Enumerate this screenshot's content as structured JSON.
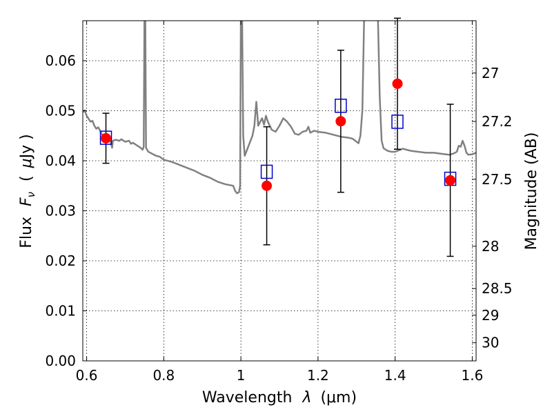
{
  "chart_data": {
    "type": "scatter",
    "title": "",
    "xlabel": "Wavelength",
    "xlabel_symbol": "λ",
    "xlabel_unit": "(μm)",
    "ylabel_left": "Flux",
    "ylabel_symbol": "F",
    "ylabel_symbol_sub": "ν",
    "ylabel_unit_open": "(",
    "ylabel_unit_mu": "μ",
    "ylabel_unit_rest": "Jy )",
    "ylabel_right": "Magnitude (AB)",
    "xlim": [
      0.59,
      1.61
    ],
    "ylim": [
      0.0,
      0.068
    ],
    "grid": true,
    "x_ticks": [
      {
        "value": 0.6,
        "label": "0.6"
      },
      {
        "value": 0.8,
        "label": "0.8"
      },
      {
        "value": 1.0,
        "label": "1"
      },
      {
        "value": 1.2,
        "label": "1.2"
      },
      {
        "value": 1.4,
        "label": "1.4"
      },
      {
        "value": 1.6,
        "label": "1.6"
      }
    ],
    "y_ticks": [
      {
        "value": 0.0,
        "label": "0.00"
      },
      {
        "value": 0.01,
        "label": "0.01"
      },
      {
        "value": 0.02,
        "label": "0.02"
      },
      {
        "value": 0.03,
        "label": "0.03"
      },
      {
        "value": 0.04,
        "label": "0.04"
      },
      {
        "value": 0.05,
        "label": "0.05"
      },
      {
        "value": 0.06,
        "label": "0.06"
      }
    ],
    "right_ticks": [
      {
        "mag": 27.0,
        "label": "27"
      },
      {
        "mag": 27.2,
        "label": "27.2"
      },
      {
        "mag": 27.5,
        "label": "27.5"
      },
      {
        "mag": 28.0,
        "label": "28"
      },
      {
        "mag": 28.5,
        "label": "28.5"
      },
      {
        "mag": 29.0,
        "label": "29"
      },
      {
        "mag": 30.0,
        "label": "30"
      }
    ],
    "series": [
      {
        "kind": "line",
        "color": "#808080",
        "points": [
          [
            0.59,
            0.0497
          ],
          [
            0.595,
            0.0501
          ],
          [
            0.6,
            0.049
          ],
          [
            0.605,
            0.0484
          ],
          [
            0.61,
            0.0478
          ],
          [
            0.615,
            0.048
          ],
          [
            0.62,
            0.047
          ],
          [
            0.625,
            0.0464
          ],
          [
            0.63,
            0.0467
          ],
          [
            0.635,
            0.046
          ],
          [
            0.64,
            0.0452
          ],
          [
            0.645,
            0.0449
          ],
          [
            0.648,
            0.0438
          ],
          [
            0.652,
            0.0438
          ],
          [
            0.656,
            0.0448
          ],
          [
            0.662,
            0.0438
          ],
          [
            0.666,
            0.0426
          ],
          [
            0.668,
            0.044
          ],
          [
            0.675,
            0.0442
          ],
          [
            0.685,
            0.044
          ],
          [
            0.69,
            0.0443
          ],
          [
            0.7,
            0.0438
          ],
          [
            0.71,
            0.044
          ],
          [
            0.715,
            0.0434
          ],
          [
            0.72,
            0.0436
          ],
          [
            0.73,
            0.0431
          ],
          [
            0.74,
            0.0426
          ],
          [
            0.745,
            0.0422
          ],
          [
            0.748,
            0.0428
          ],
          [
            0.75,
            0.07
          ],
          [
            0.752,
            0.07
          ],
          [
            0.754,
            0.0426
          ],
          [
            0.76,
            0.0418
          ],
          [
            0.77,
            0.0414
          ],
          [
            0.78,
            0.041
          ],
          [
            0.79,
            0.0408
          ],
          [
            0.8,
            0.0402
          ],
          [
            0.82,
            0.0398
          ],
          [
            0.84,
            0.0392
          ],
          [
            0.86,
            0.0386
          ],
          [
            0.88,
            0.038
          ],
          [
            0.9,
            0.0372
          ],
          [
            0.92,
            0.0366
          ],
          [
            0.94,
            0.0358
          ],
          [
            0.96,
            0.0353
          ],
          [
            0.98,
            0.035
          ],
          [
            0.985,
            0.034
          ],
          [
            0.99,
            0.0335
          ],
          [
            0.995,
            0.0337
          ],
          [
            0.998,
            0.035
          ],
          [
            1.0,
            0.07
          ],
          [
            1.003,
            0.07
          ],
          [
            1.006,
            0.045
          ],
          [
            1.01,
            0.041
          ],
          [
            1.02,
            0.043
          ],
          [
            1.03,
            0.045
          ],
          [
            1.035,
            0.047
          ],
          [
            1.04,
            0.0518
          ],
          [
            1.045,
            0.047
          ],
          [
            1.05,
            0.0478
          ],
          [
            1.055,
            0.0485
          ],
          [
            1.06,
            0.0472
          ],
          [
            1.065,
            0.049
          ],
          [
            1.07,
            0.0478
          ],
          [
            1.08,
            0.0462
          ],
          [
            1.09,
            0.0458
          ],
          [
            1.1,
            0.047
          ],
          [
            1.11,
            0.0485
          ],
          [
            1.12,
            0.0478
          ],
          [
            1.13,
            0.0468
          ],
          [
            1.14,
            0.0454
          ],
          [
            1.15,
            0.0452
          ],
          [
            1.16,
            0.0458
          ],
          [
            1.17,
            0.046
          ],
          [
            1.175,
            0.0468
          ],
          [
            1.18,
            0.0456
          ],
          [
            1.19,
            0.046
          ],
          [
            1.2,
            0.0458
          ],
          [
            1.22,
            0.0456
          ],
          [
            1.24,
            0.0452
          ],
          [
            1.26,
            0.0448
          ],
          [
            1.28,
            0.0446
          ],
          [
            1.29,
            0.0444
          ],
          [
            1.3,
            0.0438
          ],
          [
            1.305,
            0.0435
          ],
          [
            1.31,
            0.045
          ],
          [
            1.315,
            0.05
          ],
          [
            1.32,
            0.07
          ],
          [
            1.34,
            0.07
          ],
          [
            1.355,
            0.07
          ],
          [
            1.36,
            0.053
          ],
          [
            1.365,
            0.044
          ],
          [
            1.37,
            0.0425
          ],
          [
            1.38,
            0.042
          ],
          [
            1.39,
            0.0418
          ],
          [
            1.4,
            0.0418
          ],
          [
            1.42,
            0.0424
          ],
          [
            1.44,
            0.042
          ],
          [
            1.46,
            0.0418
          ],
          [
            1.48,
            0.0416
          ],
          [
            1.5,
            0.0416
          ],
          [
            1.52,
            0.0414
          ],
          [
            1.54,
            0.0412
          ],
          [
            1.55,
            0.0414
          ],
          [
            1.56,
            0.0418
          ],
          [
            1.565,
            0.043
          ],
          [
            1.57,
            0.0428
          ],
          [
            1.575,
            0.044
          ],
          [
            1.58,
            0.043
          ],
          [
            1.585,
            0.0416
          ],
          [
            1.59,
            0.0412
          ],
          [
            1.6,
            0.0413
          ],
          [
            1.61,
            0.0416
          ]
        ]
      },
      {
        "kind": "errorbar",
        "color": "#ff0000",
        "errcolor": "#000000",
        "points": [
          {
            "x": 0.65,
            "y": 0.0445,
            "yerr_low": 0.005,
            "yerr_high": 0.005
          },
          {
            "x": 1.067,
            "y": 0.035,
            "yerr_low": 0.0118,
            "yerr_high": 0.0118
          },
          {
            "x": 1.259,
            "y": 0.0479,
            "yerr_low": 0.0142,
            "yerr_high": 0.0142
          },
          {
            "x": 1.406,
            "y": 0.0554,
            "yerr_low": 0.0131,
            "yerr_high": 0.0131
          },
          {
            "x": 1.543,
            "y": 0.0361,
            "yerr_low": 0.0152,
            "yerr_high": 0.0152
          }
        ]
      },
      {
        "kind": "square-markers",
        "color": "#0000cc",
        "points": [
          {
            "x": 0.65,
            "y": 0.0446
          },
          {
            "x": 1.067,
            "y": 0.0378
          },
          {
            "x": 1.259,
            "y": 0.051
          },
          {
            "x": 1.406,
            "y": 0.0478
          },
          {
            "x": 1.543,
            "y": 0.0364
          }
        ]
      }
    ]
  }
}
